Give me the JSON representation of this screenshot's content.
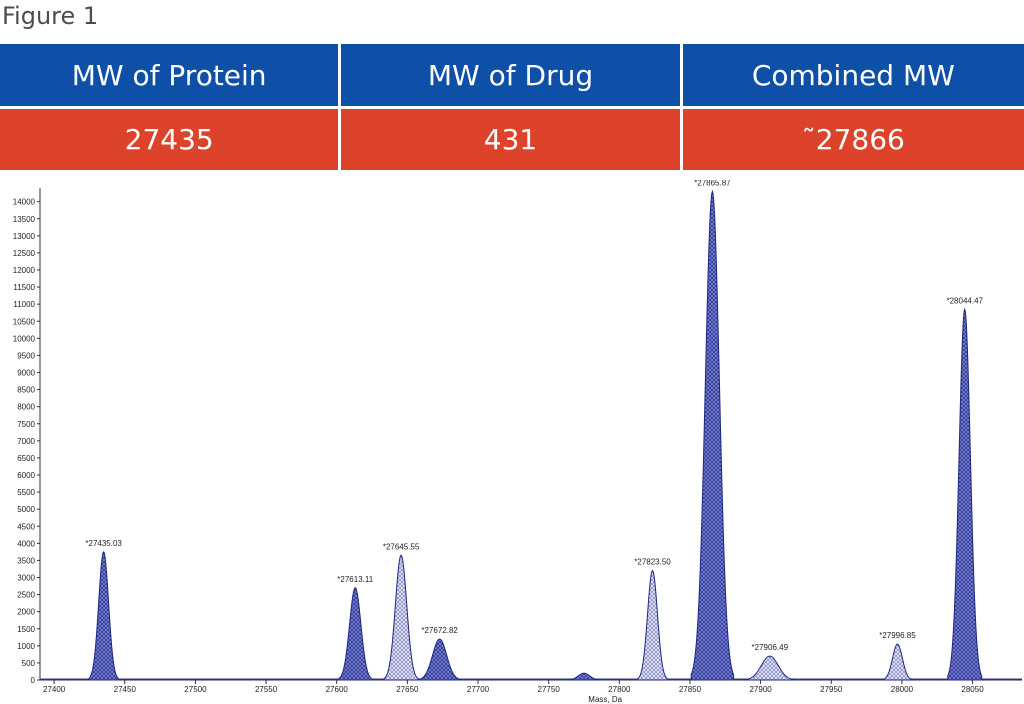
{
  "figure_label": "Figure 1",
  "table": {
    "headers": [
      "MW of Protein",
      "MW of Drug",
      "Combined MW"
    ],
    "values": [
      "27435",
      "431",
      "˜27866"
    ]
  },
  "colors": {
    "header_bg": "#0e4fa8",
    "value_bg": "#dd432a",
    "peak_fill": "#2f3aa0",
    "peak_light": "#c9cbe6"
  },
  "chart_data": {
    "type": "line",
    "xlabel": "Mass, Da",
    "ylabel": "",
    "xlim": [
      27390,
      28085
    ],
    "ylim": [
      0,
      14400
    ],
    "x_ticks": [
      27400,
      27450,
      27500,
      27550,
      27600,
      27650,
      27700,
      27750,
      27800,
      27850,
      27900,
      27950,
      28000,
      28050
    ],
    "y_ticks": [
      0,
      500,
      1000,
      1500,
      2000,
      2500,
      3000,
      3500,
      4000,
      4500,
      5000,
      5500,
      6000,
      6500,
      7000,
      7500,
      8000,
      8500,
      9000,
      9500,
      10000,
      10500,
      11000,
      11500,
      12000,
      12500,
      13000,
      13500,
      14000
    ],
    "peaks": [
      {
        "x": 27435.03,
        "y": 3750,
        "label": "*27435.03",
        "style": "dark",
        "width": 3.5
      },
      {
        "x": 27613.11,
        "y": 2700,
        "label": "*27613.11",
        "style": "dark",
        "width": 4
      },
      {
        "x": 27645.55,
        "y": 3650,
        "label": "*27645.55",
        "style": "light",
        "width": 4
      },
      {
        "x": 27672.82,
        "y": 1200,
        "label": "*27672.82",
        "style": "dark",
        "width": 5
      },
      {
        "x": 27775,
        "y": 200,
        "label": "",
        "style": "dark",
        "width": 4
      },
      {
        "x": 27823.5,
        "y": 3200,
        "label": "*27823.50",
        "style": "light",
        "width": 3.5
      },
      {
        "x": 27865.87,
        "y": 14300,
        "label": "*27865.87",
        "style": "dark",
        "width": 5
      },
      {
        "x": 27906.49,
        "y": 700,
        "label": "*27906.49",
        "style": "light",
        "width": 6
      },
      {
        "x": 27996.85,
        "y": 1050,
        "label": "*27996.85",
        "style": "light",
        "width": 3.5
      },
      {
        "x": 28044.47,
        "y": 10850,
        "label": "*28044.47",
        "style": "dark",
        "width": 4
      }
    ]
  }
}
